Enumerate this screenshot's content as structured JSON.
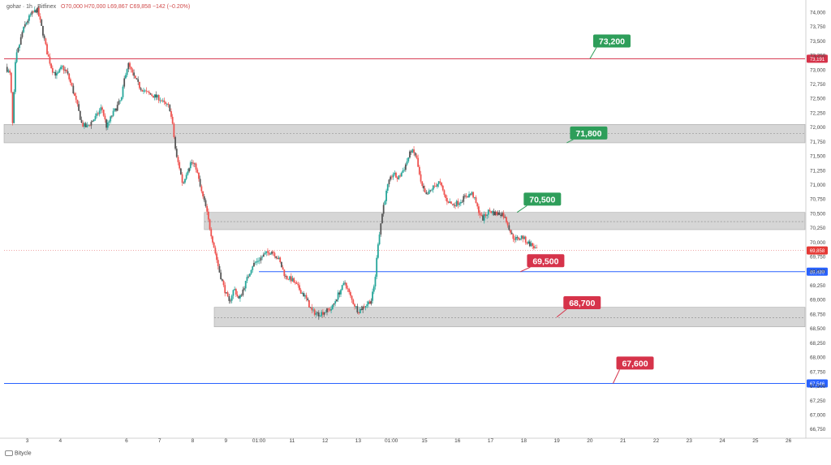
{
  "legend": {
    "symbol": "gohar · 1h · Bitfinex",
    "ohlc": "O70,000  H70,000  L69,867  C69,858  −142 (−0.20%)"
  },
  "attribution": "Bitycle",
  "colors": {
    "up": "#26a69a",
    "down": "#ef5350",
    "candle_gray": "#555555",
    "zone_fill": "#cfcfcf",
    "blue_line": "#2962ff",
    "red_line": "#e53935",
    "green_label": "#2e9e5a",
    "red_label": "#d6334a"
  },
  "chart_data": {
    "type": "candlestick",
    "xlabel": "",
    "ylabel": "",
    "ylim": [
      66650,
      74100
    ],
    "y_ticks": [
      74000,
      73750,
      73500,
      73250,
      73000,
      72750,
      72500,
      72250,
      72000,
      71750,
      71500,
      71250,
      71000,
      70750,
      70500,
      70250,
      70000,
      69750,
      69500,
      69250,
      69000,
      68750,
      68500,
      68250,
      68000,
      67750,
      67500,
      67250,
      67000,
      66750
    ],
    "y_tick_labels": [
      "74,000",
      "73,750",
      "73,500",
      "73,250",
      "73,000",
      "72,750",
      "72,500",
      "72,250",
      "72,000",
      "71,750",
      "71,500",
      "71,250",
      "71,000",
      "70,750",
      "70,500",
      "70,250",
      "70,000",
      "69,750",
      "69,500",
      "69,250",
      "69,000",
      "68,750",
      "68,500",
      "68,250",
      "68,000",
      "67,750",
      "67,500",
      "67,250",
      "67,000",
      "66,750"
    ],
    "x_range": [
      2.3,
      26.5
    ],
    "x_ticks": [
      {
        "x": 3,
        "label": "3"
      },
      {
        "x": 4,
        "label": "4"
      },
      {
        "x": 6,
        "label": "6"
      },
      {
        "x": 7,
        "label": "7"
      },
      {
        "x": 8,
        "label": "8"
      },
      {
        "x": 9,
        "label": "9"
      },
      {
        "x": 10,
        "label": "01:00"
      },
      {
        "x": 11,
        "label": "11"
      },
      {
        "x": 12,
        "label": "12"
      },
      {
        "x": 13,
        "label": "13"
      },
      {
        "x": 14,
        "label": "01:00"
      },
      {
        "x": 15,
        "label": "15"
      },
      {
        "x": 16,
        "label": "16"
      },
      {
        "x": 17,
        "label": "17"
      },
      {
        "x": 18,
        "label": "18"
      },
      {
        "x": 19,
        "label": "19"
      },
      {
        "x": 20,
        "label": "20"
      },
      {
        "x": 21,
        "label": "21"
      },
      {
        "x": 22,
        "label": "22"
      },
      {
        "x": 23,
        "label": "23"
      },
      {
        "x": 24,
        "label": "24"
      },
      {
        "x": 25,
        "label": "25"
      },
      {
        "x": 26,
        "label": "26"
      }
    ],
    "price_path": [
      [
        2.35,
        73050
      ],
      [
        2.5,
        72900
      ],
      [
        2.55,
        71950
      ],
      [
        2.65,
        73200
      ],
      [
        2.75,
        73400
      ],
      [
        2.85,
        73650
      ],
      [
        2.95,
        73800
      ],
      [
        3.1,
        73950
      ],
      [
        3.3,
        74050
      ],
      [
        3.45,
        73700
      ],
      [
        3.6,
        73300
      ],
      [
        3.75,
        73000
      ],
      [
        3.9,
        72900
      ],
      [
        4.05,
        73050
      ],
      [
        4.2,
        72950
      ],
      [
        4.35,
        72700
      ],
      [
        4.5,
        72400
      ],
      [
        4.65,
        72050
      ],
      [
        4.8,
        72000
      ],
      [
        4.95,
        72100
      ],
      [
        5.1,
        72200
      ],
      [
        5.25,
        72350
      ],
      [
        5.4,
        72000
      ],
      [
        5.55,
        72200
      ],
      [
        5.7,
        72350
      ],
      [
        5.85,
        72500
      ],
      [
        5.95,
        72900
      ],
      [
        6.05,
        73100
      ],
      [
        6.2,
        72900
      ],
      [
        6.4,
        72700
      ],
      [
        6.6,
        72600
      ],
      [
        6.8,
        72550
      ],
      [
        7.0,
        72500
      ],
      [
        7.15,
        72400
      ],
      [
        7.3,
        72350
      ],
      [
        7.4,
        72000
      ],
      [
        7.5,
        71500
      ],
      [
        7.6,
        71300
      ],
      [
        7.7,
        71000
      ],
      [
        7.8,
        71200
      ],
      [
        7.95,
        71400
      ],
      [
        8.1,
        71300
      ],
      [
        8.25,
        70900
      ],
      [
        8.4,
        70600
      ],
      [
        8.5,
        70300
      ],
      [
        8.65,
        69900
      ],
      [
        8.8,
        69500
      ],
      [
        8.95,
        69200
      ],
      [
        9.1,
        68950
      ],
      [
        9.25,
        69200
      ],
      [
        9.4,
        69000
      ],
      [
        9.6,
        69300
      ],
      [
        9.8,
        69600
      ],
      [
        10.0,
        69700
      ],
      [
        10.2,
        69800
      ],
      [
        10.4,
        69850
      ],
      [
        10.6,
        69700
      ],
      [
        10.8,
        69400
      ],
      [
        11.0,
        69350
      ],
      [
        11.2,
        69200
      ],
      [
        11.4,
        69050
      ],
      [
        11.6,
        68800
      ],
      [
        11.8,
        68750
      ],
      [
        12.0,
        68800
      ],
      [
        12.2,
        68850
      ],
      [
        12.4,
        69100
      ],
      [
        12.6,
        69300
      ],
      [
        12.8,
        69000
      ],
      [
        13.0,
        68800
      ],
      [
        13.2,
        68900
      ],
      [
        13.4,
        69000
      ],
      [
        13.5,
        69300
      ],
      [
        13.6,
        70000
      ],
      [
        13.75,
        70600
      ],
      [
        13.9,
        71000
      ],
      [
        14.05,
        71200
      ],
      [
        14.2,
        71100
      ],
      [
        14.4,
        71300
      ],
      [
        14.6,
        71600
      ],
      [
        14.75,
        71500
      ],
      [
        14.9,
        71000
      ],
      [
        15.05,
        70800
      ],
      [
        15.25,
        70950
      ],
      [
        15.45,
        71050
      ],
      [
        15.65,
        70750
      ],
      [
        15.85,
        70650
      ],
      [
        16.05,
        70700
      ],
      [
        16.25,
        70800
      ],
      [
        16.45,
        70850
      ],
      [
        16.6,
        70600
      ],
      [
        16.75,
        70400
      ],
      [
        16.95,
        70550
      ],
      [
        17.15,
        70500
      ],
      [
        17.35,
        70500
      ],
      [
        17.5,
        70350
      ],
      [
        17.65,
        70100
      ],
      [
        17.8,
        70050
      ],
      [
        17.95,
        70100
      ],
      [
        18.1,
        70000
      ],
      [
        18.25,
        69950
      ],
      [
        18.4,
        69858
      ]
    ],
    "zones": [
      {
        "x_start": 2.3,
        "y_low": 71730,
        "y_high": 72050,
        "mid": 71890,
        "color": "gray"
      },
      {
        "x_start": 8.35,
        "y_low": 70220,
        "y_high": 70520,
        "mid": 70360,
        "color": "gray"
      },
      {
        "x_start": 8.65,
        "y_low": 68530,
        "y_high": 68870,
        "mid": 68690,
        "color": "gray"
      }
    ],
    "levels": [
      {
        "y": 73191,
        "x_start": 2.3,
        "color": "red",
        "axis_label": "73,191"
      },
      {
        "y": 69489,
        "x_start": 10.0,
        "color": "blue",
        "axis_label": "69,489"
      },
      {
        "y": 67546,
        "x_start": 2.3,
        "color": "blue",
        "axis_label": "67,546"
      }
    ],
    "current_price": {
      "y": 69858,
      "axis_label": "69,858"
    },
    "annotations": [
      {
        "text": "73,200",
        "x": 20.1,
        "y": 73500,
        "anchor_x": 20.0,
        "anchor_y": 73191,
        "color": "green"
      },
      {
        "text": "71,800",
        "x": 19.4,
        "y": 71900,
        "anchor_x": 19.3,
        "anchor_y": 71730,
        "color": "green"
      },
      {
        "text": "70,500",
        "x": 18.0,
        "y": 70750,
        "anchor_x": 17.8,
        "anchor_y": 70520,
        "color": "green"
      },
      {
        "text": "69,500",
        "x": 18.1,
        "y": 69680,
        "anchor_x": 17.9,
        "anchor_y": 69489,
        "color": "red"
      },
      {
        "text": "68,700",
        "x": 19.2,
        "y": 68950,
        "anchor_x": 19.0,
        "anchor_y": 68700,
        "color": "red"
      },
      {
        "text": "67,600",
        "x": 20.8,
        "y": 67900,
        "anchor_x": 20.7,
        "anchor_y": 67546,
        "color": "red"
      }
    ],
    "grid": false,
    "legend_position": "top-left"
  }
}
